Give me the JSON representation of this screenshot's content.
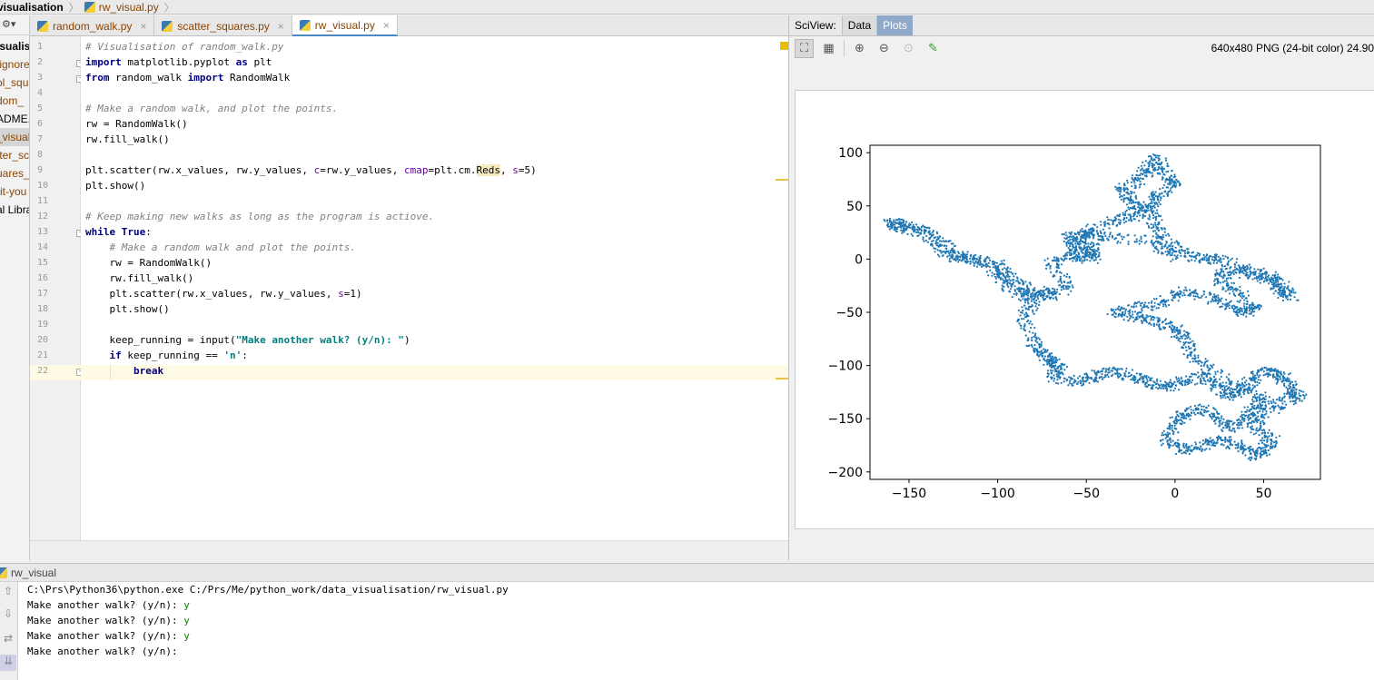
{
  "breadcrumb": {
    "folder": "visualisation",
    "file": "rw_visual.py"
  },
  "project": {
    "root": "isualis",
    "items": [
      "tignore",
      "ol_squa",
      "dom_",
      "ADME.",
      "_visual",
      "tter_sc",
      "uares_p",
      "-it-you",
      "al Libra"
    ]
  },
  "tabs": [
    {
      "label": "random_walk.py",
      "close": "×"
    },
    {
      "label": "scatter_squares.py",
      "close": "×"
    },
    {
      "label": "rw_visual.py",
      "close": "×"
    }
  ],
  "editor": {
    "line_numbers": [
      "1",
      "2",
      "3",
      "4",
      "5",
      "6",
      "7",
      "8",
      "9",
      "10",
      "11",
      "12",
      "13",
      "14",
      "15",
      "16",
      "17",
      "18",
      "19",
      "20",
      "21",
      "22"
    ],
    "lines": {
      "l1": "# Visualisation of random_walk.py",
      "l2a": "import",
      "l2b": " matplotlib.pyplot ",
      "l2c": "as",
      "l2d": " plt",
      "l3a": "from",
      "l3b": " random_walk ",
      "l3c": "import",
      "l3d": " RandomWalk",
      "l5": "# Make a random walk, and plot the points.",
      "l6": "rw = RandomWalk()",
      "l7": "rw.fill_walk()",
      "l9a": "plt.scatter(rw.x_values, rw.y_values, ",
      "l9b": "c",
      "l9c": "=rw.y_values, ",
      "l9d": "cmap",
      "l9e": "=plt.cm.",
      "l9f": "Reds",
      "l9g": ", ",
      "l9h": "s",
      "l9i": "=5)",
      "l10": "plt.show()",
      "l12": "# Keep making new walks as long as the program is actiove.",
      "l13a": "while",
      "l13b": " ",
      "l13c": "True",
      "l13d": ":",
      "l14": "    # Make a random walk and plot the points.",
      "l15": "    rw = RandomWalk()",
      "l16": "    rw.fill_walk()",
      "l17a": "    plt.scatter(rw.x_values, rw.y_values, ",
      "l17b": "s",
      "l17c": "=1)",
      "l18": "    plt.show()",
      "l20a": "    keep_running = input(",
      "l20b": "\"Make another walk? (y/n): \"",
      "l20c": ")",
      "l21a": "    ",
      "l21b": "if",
      "l21c": " keep_running == ",
      "l21d": "'n'",
      "l21e": ":",
      "l22a": "        ",
      "l22b": "break"
    }
  },
  "sciview": {
    "label": "SciView:",
    "tabs": [
      "Data",
      "Plots"
    ],
    "tools": [
      "fit-to-window-icon",
      "grid-icon",
      "zoom-in-icon",
      "zoom-out-icon",
      "actual-size-icon",
      "color-picker-icon"
    ],
    "image_info": "640x480 PNG (24-bit color) 24.90"
  },
  "chart_data": {
    "type": "scatter",
    "title": "",
    "xlabel": "",
    "ylabel": "",
    "xlim": [
      -172,
      82
    ],
    "ylim": [
      -207,
      107
    ],
    "xticks": [
      -150,
      -100,
      -50,
      0,
      50
    ],
    "yticks": [
      100,
      50,
      0,
      -50,
      -100,
      -150,
      -200
    ],
    "xtick_labels": [
      "−150",
      "−100",
      "−50",
      "0",
      "50"
    ],
    "ytick_labels": [
      "100",
      "50",
      "0",
      "−50",
      "−100",
      "−150",
      "−200"
    ],
    "color": "#1f77b4",
    "series": [
      {
        "path": [
          [
            0,
            0
          ],
          [
            -15,
            18
          ],
          [
            -40,
            20
          ],
          [
            -50,
            25
          ],
          [
            -55,
            15
          ],
          [
            -45,
            10
          ],
          [
            -50,
            0
          ],
          [
            -60,
            5
          ],
          [
            -70,
            -5
          ],
          [
            -60,
            -25
          ],
          [
            -70,
            -35
          ],
          [
            -75,
            -30
          ],
          [
            -85,
            -35
          ],
          [
            -95,
            -25
          ],
          [
            -105,
            -5
          ],
          [
            -120,
            0
          ],
          [
            -130,
            5
          ],
          [
            -140,
            25
          ],
          [
            -155,
            30
          ],
          [
            -160,
            35
          ],
          [
            -150,
            30
          ],
          [
            -135,
            20
          ],
          [
            -125,
            5
          ],
          [
            -115,
            0
          ],
          [
            -100,
            -5
          ],
          [
            -95,
            -15
          ],
          [
            -85,
            -25
          ],
          [
            -80,
            -40
          ],
          [
            -85,
            -55
          ],
          [
            -80,
            -80
          ],
          [
            -75,
            -90
          ],
          [
            -70,
            -95
          ],
          [
            -65,
            -100
          ],
          [
            -70,
            -110
          ],
          [
            -55,
            -115
          ],
          [
            -45,
            -110
          ],
          [
            -35,
            -105
          ],
          [
            -25,
            -110
          ],
          [
            -15,
            -115
          ],
          [
            -5,
            -120
          ],
          [
            5,
            -115
          ],
          [
            15,
            -110
          ],
          [
            25,
            -120
          ],
          [
            30,
            -130
          ],
          [
            40,
            -120
          ],
          [
            45,
            -110
          ],
          [
            55,
            -105
          ],
          [
            60,
            -110
          ],
          [
            65,
            -120
          ],
          [
            70,
            -130
          ],
          [
            60,
            -135
          ],
          [
            50,
            -145
          ],
          [
            45,
            -160
          ],
          [
            55,
            -170
          ],
          [
            50,
            -180
          ],
          [
            45,
            -185
          ],
          [
            35,
            -175
          ],
          [
            25,
            -170
          ],
          [
            15,
            -175
          ],
          [
            5,
            -180
          ],
          [
            -5,
            -170
          ],
          [
            0,
            -155
          ],
          [
            5,
            -145
          ],
          [
            15,
            -140
          ],
          [
            25,
            -150
          ],
          [
            30,
            -160
          ],
          [
            40,
            -150
          ],
          [
            45,
            -140
          ],
          [
            50,
            -130
          ],
          [
            35,
            -120
          ],
          [
            20,
            -105
          ],
          [
            10,
            -90
          ],
          [
            5,
            -75
          ],
          [
            0,
            -65
          ],
          [
            -10,
            -60
          ],
          [
            -20,
            -55
          ],
          [
            -35,
            -50
          ],
          [
            -20,
            -45
          ],
          [
            -5,
            -40
          ],
          [
            5,
            -30
          ],
          [
            20,
            -35
          ],
          [
            30,
            -45
          ],
          [
            40,
            -50
          ],
          [
            45,
            -45
          ],
          [
            35,
            -30
          ],
          [
            25,
            -20
          ],
          [
            30,
            -10
          ],
          [
            45,
            -15
          ],
          [
            55,
            -20
          ],
          [
            60,
            -30
          ],
          [
            65,
            -35
          ],
          [
            55,
            -15
          ],
          [
            40,
            -10
          ],
          [
            25,
            0
          ],
          [
            15,
            0
          ],
          [
            5,
            5
          ],
          [
            -5,
            15
          ],
          [
            -10,
            30
          ],
          [
            -15,
            45
          ],
          [
            -25,
            55
          ],
          [
            -30,
            65
          ],
          [
            -20,
            75
          ],
          [
            -15,
            85
          ],
          [
            -10,
            95
          ],
          [
            -5,
            80
          ],
          [
            0,
            70
          ],
          [
            -10,
            60
          ],
          [
            -15,
            50
          ],
          [
            -25,
            40
          ],
          [
            -35,
            35
          ],
          [
            -50,
            25
          ],
          [
            -60,
            20
          ],
          [
            -55,
            10
          ],
          [
            -45,
            0
          ]
        ]
      }
    ]
  },
  "run": {
    "title": "rw_visual",
    "command": "C:\\Prs\\Python36\\python.exe C:/Prs/Me/python_work/data_visualisation/rw_visual.py",
    "prompt": "Make another walk? (y/n): ",
    "answers": [
      "y",
      "y",
      "y",
      ""
    ]
  }
}
